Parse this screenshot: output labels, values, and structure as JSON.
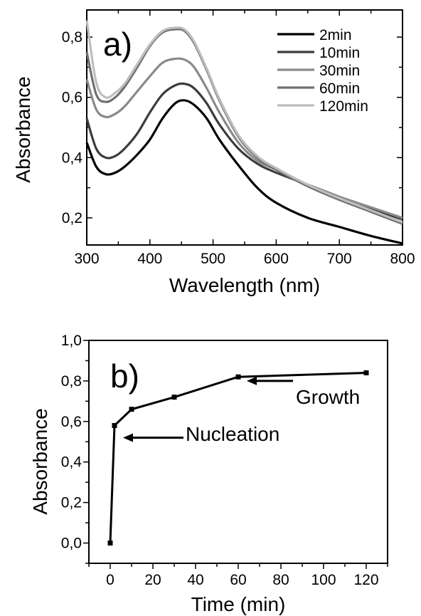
{
  "chart_data": [
    {
      "panel_label": "a)",
      "type": "line",
      "xlabel": "Wavelength (nm)",
      "ylabel": "Absorbance",
      "xlim": [
        300,
        800
      ],
      "ylim": [
        0.11,
        0.89
      ],
      "x_ticks": [
        "300",
        "400",
        "500",
        "600",
        "700",
        "800"
      ],
      "y_ticks": [
        "0,2",
        "0,4",
        "0,6",
        "0,8"
      ],
      "legend_position": "top-right",
      "x": [
        300,
        315,
        330,
        345,
        360,
        380,
        400,
        420,
        440,
        455,
        470,
        490,
        510,
        540,
        570,
        600,
        650,
        700,
        750,
        800
      ],
      "series": [
        {
          "name": "2min",
          "color": "#000000",
          "values": [
            0.45,
            0.37,
            0.345,
            0.35,
            0.37,
            0.41,
            0.46,
            0.53,
            0.58,
            0.59,
            0.575,
            0.53,
            0.46,
            0.375,
            0.3,
            0.25,
            0.2,
            0.17,
            0.14,
            0.115
          ]
        },
        {
          "name": "10min",
          "color": "#3c3c3c",
          "values": [
            0.53,
            0.43,
            0.4,
            0.405,
            0.43,
            0.48,
            0.55,
            0.61,
            0.64,
            0.645,
            0.63,
            0.58,
            0.51,
            0.43,
            0.38,
            0.35,
            0.31,
            0.27,
            0.23,
            0.195
          ]
        },
        {
          "name": "30min",
          "color": "#8a8a8a",
          "values": [
            0.66,
            0.56,
            0.535,
            0.545,
            0.57,
            0.62,
            0.67,
            0.715,
            0.728,
            0.725,
            0.7,
            0.63,
            0.55,
            0.45,
            0.39,
            0.36,
            0.31,
            0.27,
            0.235,
            0.2
          ]
        },
        {
          "name": "60min",
          "color": "#6f6f6f",
          "values": [
            0.75,
            0.61,
            0.585,
            0.6,
            0.635,
            0.7,
            0.77,
            0.815,
            0.826,
            0.82,
            0.78,
            0.69,
            0.59,
            0.47,
            0.4,
            0.36,
            0.305,
            0.26,
            0.22,
            0.18
          ]
        },
        {
          "name": "120min",
          "color": "#bdbdbd",
          "values": [
            0.855,
            0.65,
            0.6,
            0.615,
            0.645,
            0.71,
            0.775,
            0.82,
            0.831,
            0.825,
            0.785,
            0.695,
            0.595,
            0.475,
            0.405,
            0.365,
            0.31,
            0.265,
            0.225,
            0.185
          ]
        }
      ]
    },
    {
      "panel_label": "b)",
      "type": "line",
      "xlabel": "Time (min)",
      "ylabel": "Absorbance",
      "xlim": [
        -10,
        130
      ],
      "ylim": [
        -0.1,
        1.0
      ],
      "x_ticks": [
        "0",
        "20",
        "40",
        "60",
        "80",
        "100",
        "120"
      ],
      "y_ticks": [
        "0,0",
        "0,2",
        "0,4",
        "0,6",
        "0,8",
        "1,0"
      ],
      "x": [
        0,
        2,
        10,
        30,
        60,
        120
      ],
      "values": [
        0.0,
        0.58,
        0.66,
        0.72,
        0.82,
        0.84
      ],
      "annotations": [
        {
          "text": "Nucleation",
          "points_to_x": 2,
          "points_to_y": 0.52
        },
        {
          "text": "Growth",
          "points_to_x": 60,
          "points_to_y": 0.8
        }
      ]
    }
  ]
}
